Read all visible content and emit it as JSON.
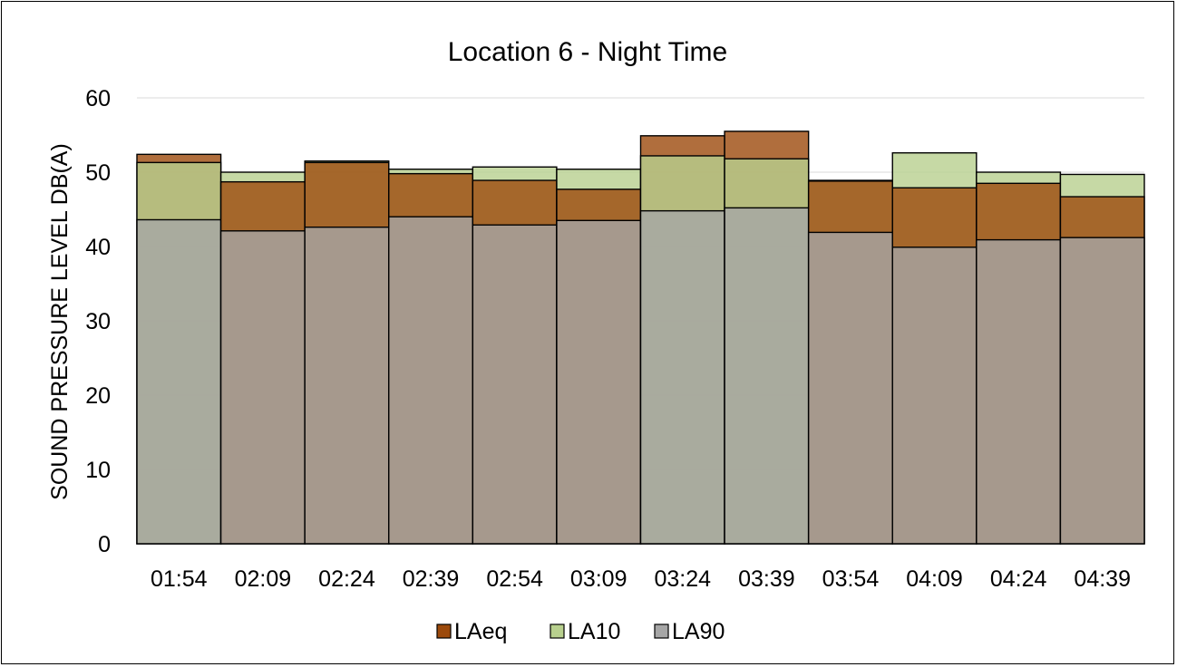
{
  "chart_data": {
    "type": "bar",
    "title": "Location 6 - Night Time",
    "ylabel": "SOUND PRESSURE LEVEL DB(A)",
    "xlabel": "",
    "ylim": [
      0,
      60
    ],
    "yticks": [
      0,
      10,
      20,
      30,
      40,
      50,
      60
    ],
    "grid": true,
    "legend_position": "bottom",
    "categories": [
      "01:54",
      "02:09",
      "02:24",
      "02:39",
      "02:54",
      "03:09",
      "03:24",
      "03:39",
      "03:54",
      "04:09",
      "04:24",
      "04:39"
    ],
    "series": [
      {
        "name": "LAeq",
        "color": "#9C4A0C",
        "values": [
          52.4,
          48.7,
          51.3,
          49.8,
          48.9,
          47.7,
          54.9,
          55.5,
          48.8,
          47.9,
          48.5,
          46.7
        ]
      },
      {
        "name": "LA10",
        "color": "#B8D08E",
        "values": [
          51.3,
          50.0,
          51.5,
          50.4,
          50.7,
          50.4,
          52.2,
          51.8,
          48.9,
          52.6,
          50.0,
          49.7
        ]
      },
      {
        "name": "LA90",
        "color": "#A6A6A6",
        "values": [
          43.6,
          42.1,
          42.6,
          44.0,
          42.9,
          43.5,
          44.8,
          45.2,
          41.9,
          39.9,
          40.9,
          41.2
        ]
      }
    ]
  }
}
